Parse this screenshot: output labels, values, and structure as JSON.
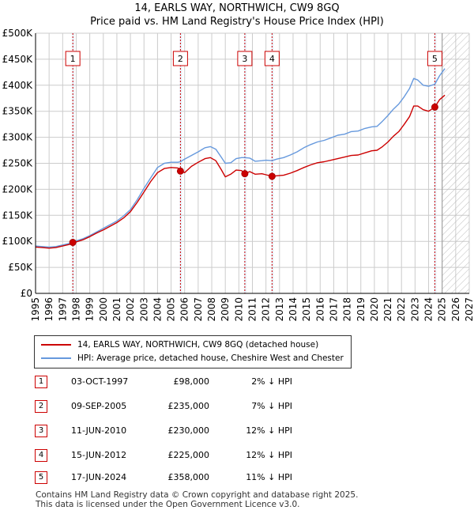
{
  "header": {
    "title": "14, EARLS WAY, NORTHWICH, CW9 8GQ",
    "subtitle": "Price paid vs. HM Land Registry's House Price Index (HPI)"
  },
  "chart_data": {
    "type": "line",
    "title": "Price paid vs. HM Land Registry's House Price Index (HPI)",
    "xlim": [
      1995,
      2027
    ],
    "ylim": [
      0,
      500000
    ],
    "x_ticks": [
      "1995",
      "1996",
      "1997",
      "1998",
      "1999",
      "2000",
      "2001",
      "2002",
      "2003",
      "2004",
      "2005",
      "2006",
      "2007",
      "2008",
      "2009",
      "2010",
      "2011",
      "2012",
      "2013",
      "2014",
      "2015",
      "2016",
      "2017",
      "2018",
      "2019",
      "2020",
      "2021",
      "2022",
      "2023",
      "2024",
      "2025",
      "2026",
      "2027"
    ],
    "y_ticks": [
      {
        "v": 0,
        "label": "£0"
      },
      {
        "v": 50000,
        "label": "£50K"
      },
      {
        "v": 100000,
        "label": "£100K"
      },
      {
        "v": 150000,
        "label": "£150K"
      },
      {
        "v": 200000,
        "label": "£200K"
      },
      {
        "v": 250000,
        "label": "£250K"
      },
      {
        "v": 300000,
        "label": "£300K"
      },
      {
        "v": 350000,
        "label": "£350K"
      },
      {
        "v": 400000,
        "label": "£400K"
      },
      {
        "v": 450000,
        "label": "£450K"
      },
      {
        "v": 500000,
        "label": "£500K"
      }
    ],
    "projection_start": 2025.0,
    "series": [
      {
        "name": "14, EARLS WAY, NORTHWICH, CW9 8GQ (detached house)",
        "color": "#cc0000",
        "points": [
          [
            1995.0,
            89000
          ],
          [
            1995.5,
            88000
          ],
          [
            1996.0,
            87000
          ],
          [
            1996.5,
            88000
          ],
          [
            1997.0,
            91000
          ],
          [
            1997.5,
            94000
          ],
          [
            1997.75,
            98000
          ],
          [
            1998.0,
            99000
          ],
          [
            1998.5,
            103000
          ],
          [
            1999.0,
            109000
          ],
          [
            1999.5,
            116000
          ],
          [
            2000.0,
            122000
          ],
          [
            2000.5,
            129000
          ],
          [
            2001.0,
            136000
          ],
          [
            2001.5,
            145000
          ],
          [
            2002.0,
            157000
          ],
          [
            2002.5,
            175000
          ],
          [
            2003.0,
            195000
          ],
          [
            2003.5,
            215000
          ],
          [
            2004.0,
            232000
          ],
          [
            2004.5,
            240000
          ],
          [
            2005.0,
            242000
          ],
          [
            2005.5,
            241000
          ],
          [
            2005.69,
            235000
          ],
          [
            2006.0,
            232000
          ],
          [
            2006.5,
            244000
          ],
          [
            2007.0,
            252000
          ],
          [
            2007.5,
            259000
          ],
          [
            2007.9,
            261000
          ],
          [
            2008.3,
            255000
          ],
          [
            2008.7,
            238000
          ],
          [
            2009.0,
            224000
          ],
          [
            2009.4,
            229000
          ],
          [
            2009.8,
            237000
          ],
          [
            2010.2,
            236000
          ],
          [
            2010.44,
            230000
          ],
          [
            2010.8,
            234000
          ],
          [
            2011.2,
            229000
          ],
          [
            2011.7,
            230000
          ],
          [
            2012.0,
            228000
          ],
          [
            2012.45,
            225000
          ],
          [
            2012.8,
            226000
          ],
          [
            2013.3,
            227000
          ],
          [
            2013.8,
            231000
          ],
          [
            2014.3,
            236000
          ],
          [
            2014.8,
            242000
          ],
          [
            2015.3,
            247000
          ],
          [
            2015.8,
            251000
          ],
          [
            2016.3,
            253000
          ],
          [
            2016.8,
            256000
          ],
          [
            2017.3,
            259000
          ],
          [
            2017.8,
            262000
          ],
          [
            2018.3,
            265000
          ],
          [
            2018.8,
            266000
          ],
          [
            2019.3,
            270000
          ],
          [
            2019.8,
            274000
          ],
          [
            2020.2,
            275000
          ],
          [
            2020.6,
            282000
          ],
          [
            2021.0,
            291000
          ],
          [
            2021.4,
            302000
          ],
          [
            2021.8,
            311000
          ],
          [
            2022.2,
            325000
          ],
          [
            2022.6,
            340000
          ],
          [
            2022.9,
            360000
          ],
          [
            2023.2,
            360000
          ],
          [
            2023.6,
            353000
          ],
          [
            2024.0,
            350000
          ],
          [
            2024.46,
            358000
          ],
          [
            2024.8,
            372000
          ],
          [
            2025.2,
            381000
          ]
        ]
      },
      {
        "name": "HPI: Average price, detached house, Cheshire West and Chester",
        "color": "#6699dd",
        "points": [
          [
            1995.0,
            91000
          ],
          [
            1995.5,
            90000
          ],
          [
            1996.0,
            89000
          ],
          [
            1996.5,
            90000
          ],
          [
            1997.0,
            93000
          ],
          [
            1997.5,
            96000
          ],
          [
            1997.75,
            100000
          ],
          [
            1998.0,
            101000
          ],
          [
            1998.5,
            105000
          ],
          [
            1999.0,
            111000
          ],
          [
            1999.5,
            118000
          ],
          [
            2000.0,
            125000
          ],
          [
            2000.5,
            132000
          ],
          [
            2001.0,
            139000
          ],
          [
            2001.5,
            149000
          ],
          [
            2002.0,
            161000
          ],
          [
            2002.5,
            180000
          ],
          [
            2003.0,
            202000
          ],
          [
            2003.5,
            222000
          ],
          [
            2004.0,
            242000
          ],
          [
            2004.5,
            250000
          ],
          [
            2005.0,
            252000
          ],
          [
            2005.5,
            252000
          ],
          [
            2005.69,
            253000
          ],
          [
            2006.0,
            258000
          ],
          [
            2006.5,
            265000
          ],
          [
            2007.0,
            272000
          ],
          [
            2007.5,
            280000
          ],
          [
            2007.9,
            282000
          ],
          [
            2008.3,
            277000
          ],
          [
            2008.7,
            262000
          ],
          [
            2009.0,
            250000
          ],
          [
            2009.4,
            251000
          ],
          [
            2009.8,
            259000
          ],
          [
            2010.2,
            261000
          ],
          [
            2010.44,
            261000
          ],
          [
            2010.8,
            260000
          ],
          [
            2011.2,
            254000
          ],
          [
            2011.7,
            255000
          ],
          [
            2012.0,
            256000
          ],
          [
            2012.45,
            255000
          ],
          [
            2012.8,
            258000
          ],
          [
            2013.3,
            261000
          ],
          [
            2013.8,
            266000
          ],
          [
            2014.3,
            272000
          ],
          [
            2014.8,
            280000
          ],
          [
            2015.3,
            286000
          ],
          [
            2015.8,
            291000
          ],
          [
            2016.3,
            294000
          ],
          [
            2016.8,
            299000
          ],
          [
            2017.3,
            304000
          ],
          [
            2017.8,
            306000
          ],
          [
            2018.3,
            311000
          ],
          [
            2018.8,
            312000
          ],
          [
            2019.3,
            317000
          ],
          [
            2019.8,
            320000
          ],
          [
            2020.2,
            321000
          ],
          [
            2020.6,
            331000
          ],
          [
            2021.0,
            342000
          ],
          [
            2021.4,
            354000
          ],
          [
            2021.8,
            364000
          ],
          [
            2022.2,
            378000
          ],
          [
            2022.6,
            394000
          ],
          [
            2022.9,
            413000
          ],
          [
            2023.2,
            410000
          ],
          [
            2023.6,
            400000
          ],
          [
            2024.0,
            398000
          ],
          [
            2024.46,
            402000
          ],
          [
            2024.8,
            418000
          ],
          [
            2025.2,
            432000
          ]
        ]
      }
    ],
    "sales": [
      {
        "n": "1",
        "x": 1997.75,
        "value": 98000
      },
      {
        "n": "2",
        "x": 2005.69,
        "value": 235000
      },
      {
        "n": "3",
        "x": 2010.44,
        "value": 230000
      },
      {
        "n": "4",
        "x": 2012.45,
        "value": 225000
      },
      {
        "n": "5",
        "x": 2024.46,
        "value": 358000
      }
    ]
  },
  "legend": {
    "items": [
      {
        "label": "14, EARLS WAY, NORTHWICH, CW9 8GQ (detached house)",
        "color": "#cc0000"
      },
      {
        "label": "HPI: Average price, detached house, Cheshire West and Chester",
        "color": "#6699dd"
      }
    ]
  },
  "sales_table": [
    {
      "n": "1",
      "date": "03-OCT-1997",
      "price": "£98,000",
      "hpi": "2% ↓ HPI"
    },
    {
      "n": "2",
      "date": "09-SEP-2005",
      "price": "£235,000",
      "hpi": "7% ↓ HPI"
    },
    {
      "n": "3",
      "date": "11-JUN-2010",
      "price": "£230,000",
      "hpi": "12% ↓ HPI"
    },
    {
      "n": "4",
      "date": "15-JUN-2012",
      "price": "£225,000",
      "hpi": "12% ↓ HPI"
    },
    {
      "n": "5",
      "date": "17-JUN-2024",
      "price": "£358,000",
      "hpi": "11% ↓ HPI"
    }
  ],
  "footer": {
    "line1": "Contains HM Land Registry data © Crown copyright and database right 2025.",
    "line2": "This data is licensed under the Open Government Licence v3.0."
  }
}
